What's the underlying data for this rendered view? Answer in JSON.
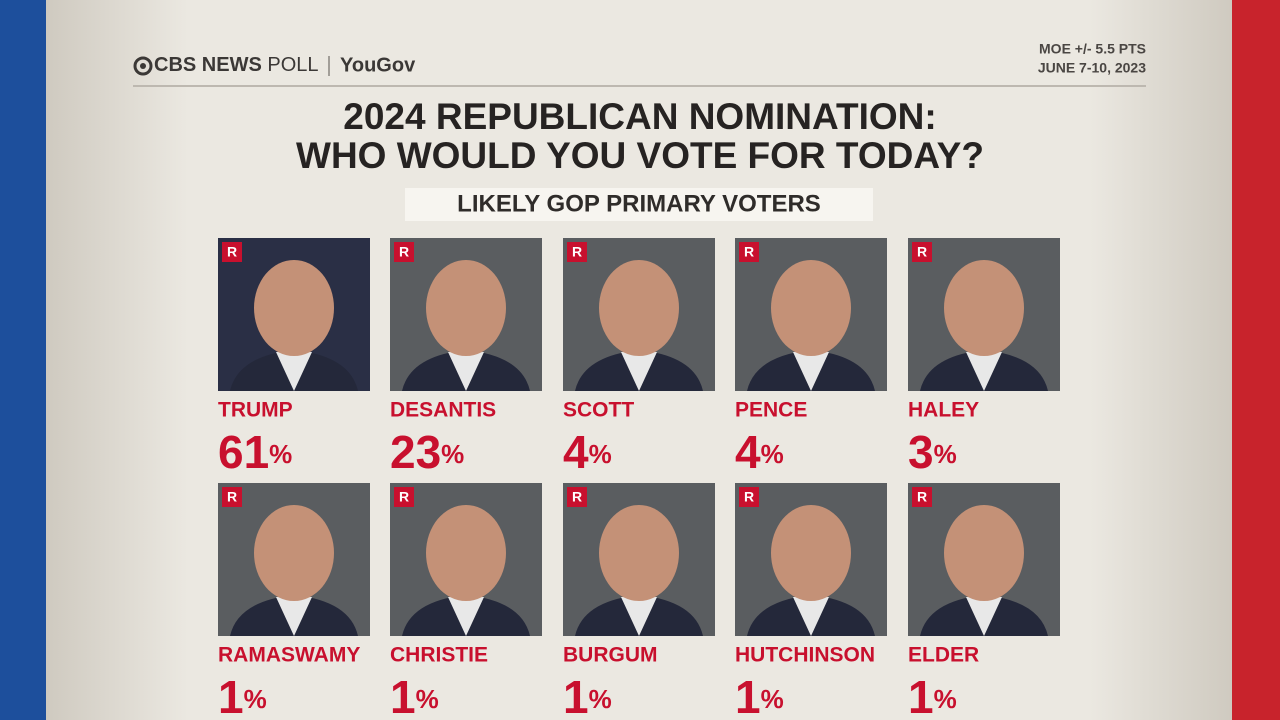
{
  "header": {
    "brand_bold": "CBS NEWS",
    "brand_light": "POLL",
    "partner": "YouGov",
    "moe": "MOE +/- 5.5 PTS",
    "dates": "JUNE 7-10, 2023"
  },
  "title": [
    "2024 REPUBLICAN NOMINATION:",
    "WHO WOULD YOU VOTE FOR TODAY?"
  ],
  "subtitle": "LIKELY GOP PRIMARY VOTERS",
  "candidates": [
    {
      "party": "R",
      "name": "TRUMP",
      "value": 61,
      "unit": "%"
    },
    {
      "party": "R",
      "name": "DESANTIS",
      "value": 23,
      "unit": "%"
    },
    {
      "party": "R",
      "name": "SCOTT",
      "value": 4,
      "unit": "%"
    },
    {
      "party": "R",
      "name": "PENCE",
      "value": 4,
      "unit": "%"
    },
    {
      "party": "R",
      "name": "HALEY",
      "value": 3,
      "unit": "%"
    },
    {
      "party": "R",
      "name": "RAMASWAMY",
      "value": 1,
      "unit": "%"
    },
    {
      "party": "R",
      "name": "CHRISTIE",
      "value": 1,
      "unit": "%"
    },
    {
      "party": "R",
      "name": "BURGUM",
      "value": 1,
      "unit": "%"
    },
    {
      "party": "R",
      "name": "HUTCHINSON",
      "value": 1,
      "unit": "%"
    },
    {
      "party": "R",
      "name": "ELDER",
      "value": 1,
      "unit": "%"
    }
  ]
}
